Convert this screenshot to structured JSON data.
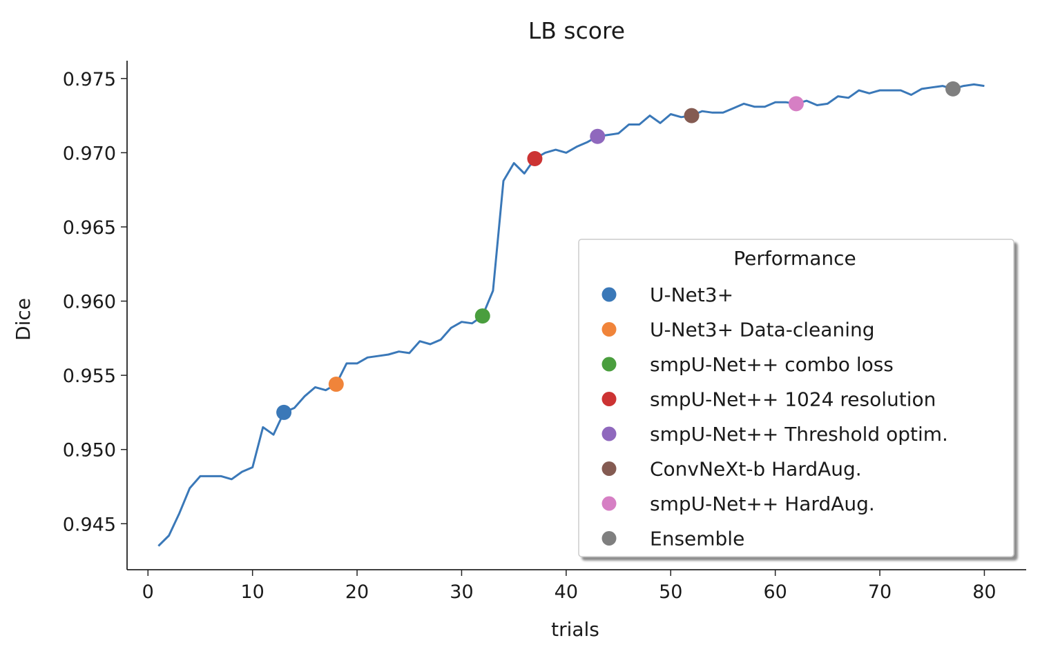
{
  "chart_data": {
    "type": "line",
    "title": "LB score",
    "xlabel": "trials",
    "ylabel": "Dice",
    "xlim": [
      -2,
      84
    ],
    "ylim": [
      0.9419,
      0.9762
    ],
    "xticks": [
      0,
      10,
      20,
      30,
      40,
      50,
      60,
      70,
      80
    ],
    "xtick_labels": [
      "0",
      "10",
      "20",
      "30",
      "40",
      "50",
      "60",
      "70",
      "80"
    ],
    "yticks": [
      0.945,
      0.95,
      0.955,
      0.96,
      0.965,
      0.97,
      0.975
    ],
    "ytick_labels": [
      "0.945",
      "0.950",
      "0.955",
      "0.960",
      "0.965",
      "0.970",
      "0.975"
    ],
    "grid": false,
    "line_color": "#3a78b8",
    "series": [
      {
        "x": [
          1,
          2,
          3,
          4,
          5,
          6,
          7,
          8,
          9,
          10,
          11,
          12,
          13,
          14,
          15,
          16,
          17,
          18,
          19,
          20,
          21,
          22,
          23,
          24,
          25,
          26,
          27,
          28,
          29,
          30,
          31,
          32,
          33,
          34,
          35,
          36,
          37,
          38,
          39,
          40,
          41,
          42,
          43,
          44,
          45,
          46,
          47,
          48,
          49,
          50,
          51,
          52,
          53,
          54,
          55,
          56,
          57,
          58,
          59,
          60,
          61,
          62,
          63,
          64,
          65,
          66,
          67,
          68,
          69,
          70,
          71,
          72,
          73,
          74,
          75,
          76,
          77,
          78,
          79,
          80
        ],
        "y": [
          0.9435,
          0.9442,
          0.9457,
          0.9474,
          0.9482,
          0.9482,
          0.9482,
          0.948,
          0.9485,
          0.9488,
          0.9515,
          0.951,
          0.9525,
          0.9528,
          0.9536,
          0.9542,
          0.954,
          0.9544,
          0.9558,
          0.9558,
          0.9562,
          0.9563,
          0.9564,
          0.9566,
          0.9565,
          0.9573,
          0.9571,
          0.9574,
          0.9582,
          0.9586,
          0.9585,
          0.959,
          0.9607,
          0.9681,
          0.9693,
          0.9686,
          0.9696,
          0.97,
          0.9702,
          0.97,
          0.9704,
          0.9707,
          0.9711,
          0.9712,
          0.9713,
          0.9719,
          0.9719,
          0.9725,
          0.972,
          0.9726,
          0.9724,
          0.9725,
          0.9728,
          0.9727,
          0.9727,
          0.973,
          0.9733,
          0.9731,
          0.9731,
          0.9734,
          0.9734,
          0.9733,
          0.9735,
          0.9732,
          0.9733,
          0.9738,
          0.9737,
          0.9742,
          0.974,
          0.9742,
          0.9742,
          0.9742,
          0.9739,
          0.9743,
          0.9744,
          0.9745,
          0.9743,
          0.9745,
          0.9746,
          0.9745
        ]
      }
    ],
    "legend": {
      "title": "Performance",
      "placement": "lower-right",
      "entries": [
        {
          "label": "U-Net3+",
          "color": "#3a78b8",
          "x": 13,
          "y": 0.9525
        },
        {
          "label": "U-Net3+ Data-cleaning",
          "color": "#f0843a",
          "x": 18,
          "y": 0.9544
        },
        {
          "label": "smpU-Net++ combo loss",
          "color": "#4a9e3e",
          "x": 32,
          "y": 0.959
        },
        {
          "label": "smpU-Net++ 1024 resolution",
          "color": "#cc3333",
          "x": 37,
          "y": 0.9696
        },
        {
          "label": "smpU-Net++ Threshold optim.",
          "color": "#8f68bd",
          "x": 43,
          "y": 0.9711
        },
        {
          "label": "ConvNeXt-b HardAug.",
          "color": "#845b52",
          "x": 52,
          "y": 0.9725
        },
        {
          "label": "smpU-Net++ HardAug.",
          "color": "#d67fc4",
          "x": 62,
          "y": 0.9733
        },
        {
          "label": "Ensemble",
          "color": "#7f7f7f",
          "x": 77,
          "y": 0.9743
        }
      ]
    }
  }
}
